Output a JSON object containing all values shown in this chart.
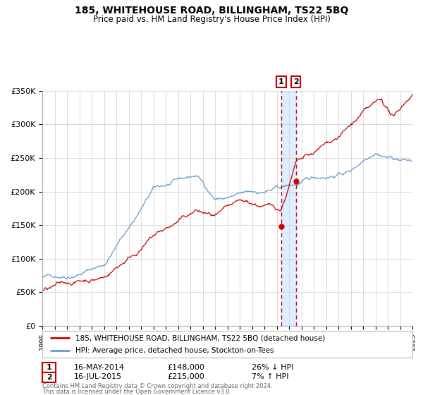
{
  "title": "185, WHITEHOUSE ROAD, BILLINGHAM, TS22 5BQ",
  "subtitle": "Price paid vs. HM Land Registry's House Price Index (HPI)",
  "legend_label_red": "185, WHITEHOUSE ROAD, BILLINGHAM, TS22 5BQ (detached house)",
  "legend_label_blue": "HPI: Average price, detached house, Stockton-on-Tees",
  "annotation1_date": "16-MAY-2014",
  "annotation1_price": "£148,000",
  "annotation1_hpi": "26% ↓ HPI",
  "annotation2_date": "16-JUL-2015",
  "annotation2_price": "£215,000",
  "annotation2_hpi": "7% ↑ HPI",
  "footnote1": "Contains HM Land Registry data © Crown copyright and database right 2024.",
  "footnote2": "This data is licensed under the Open Government Licence v3.0.",
  "ylim": [
    0,
    350000
  ],
  "yticks": [
    0,
    50000,
    100000,
    150000,
    200000,
    250000,
    300000,
    350000
  ],
  "ytick_labels": [
    "£0",
    "£50K",
    "£100K",
    "£150K",
    "£200K",
    "£250K",
    "£300K",
    "£350K"
  ],
  "color_red": "#cc0000",
  "color_blue": "#6699cc",
  "color_highlight": "#ddeeff",
  "sale1_year": 2014.37,
  "sale2_year": 2015.55,
  "sale1_price": 148000,
  "sale2_price": 215000,
  "background_color": "#ffffff",
  "grid_color": "#cccccc"
}
